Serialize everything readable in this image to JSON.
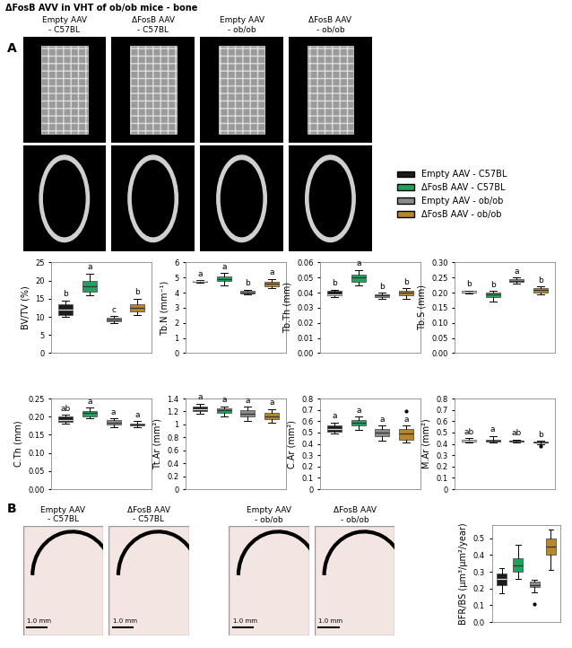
{
  "figure": {
    "title": "ΔFosB AVV in VHT of ob/ob mice - bone",
    "panel_labels": [
      "A",
      "B"
    ],
    "image_titles": [
      "Empty AAV\n- C57BL",
      "ΔFosB AAV\n- C57BL",
      "Empty AAV\n- ob/ob",
      "ΔFosB AAV\n- ob/ob"
    ],
    "scale_bar": "1.0 mm"
  },
  "groups": [
    {
      "name": "Empty AAV - C57BL",
      "color": "#1c1c1c"
    },
    {
      "name": "ΔFosB AAV - C57BL",
      "color": "#1fa35c"
    },
    {
      "name": "Empty AAV - ob/ob",
      "color": "#8a8a8a"
    },
    {
      "name": "ΔFosB AAV - ob/ob",
      "color": "#b8862b"
    }
  ],
  "chart_data": [
    {
      "type": "box",
      "y_label": "BV/TV (%)",
      "ylim": [
        0,
        25
      ],
      "yticks": [
        0,
        5,
        10,
        15,
        20,
        25
      ],
      "tick_labels": "y",
      "series": [
        {
          "name": "Empty AAV - C57BL",
          "color": "#1c1c1c",
          "q1": 10.5,
          "median": 12,
          "q3": 13.5,
          "whisker_low": 10,
          "whisker_high": 14.5,
          "outliers": [],
          "letter": "b"
        },
        {
          "name": "ΔFosB AAV - C57BL",
          "color": "#1fa35c",
          "q1": 17,
          "median": 18.5,
          "q3": 20,
          "whisker_low": 16,
          "whisker_high": 22,
          "outliers": [],
          "letter": "a"
        },
        {
          "name": "Empty AAV - ob/ob",
          "color": "#8a8a8a",
          "q1": 8.8,
          "median": 9.3,
          "q3": 9.8,
          "whisker_low": 8.3,
          "whisker_high": 10.2,
          "outliers": [],
          "letter": "c"
        },
        {
          "name": "ΔFosB AAV - ob/ob",
          "color": "#b8862b",
          "q1": 11.5,
          "median": 12.5,
          "q3": 13.5,
          "whisker_low": 10.5,
          "whisker_high": 15,
          "outliers": [],
          "letter": "b"
        }
      ]
    },
    {
      "type": "box",
      "y_label": "Tb.N (mm⁻¹)",
      "ylim": [
        0,
        6
      ],
      "yticks": [
        0,
        1,
        2,
        3,
        4,
        5,
        6
      ],
      "tick_labels": "y",
      "series": [
        {
          "name": "Empty AAV - C57BL",
          "color": "#1c1c1c",
          "q1": 4.7,
          "median": 4.75,
          "q3": 4.8,
          "whisker_low": 4.68,
          "whisker_high": 4.82,
          "outliers": [],
          "letter": "a"
        },
        {
          "name": "ΔFosB AAV - C57BL",
          "color": "#1fa35c",
          "q1": 4.75,
          "median": 4.9,
          "q3": 5.05,
          "whisker_low": 4.5,
          "whisker_high": 5.3,
          "outliers": [],
          "letter": "a"
        },
        {
          "name": "Empty AAV - ob/ob",
          "color": "#8a8a8a",
          "q1": 3.95,
          "median": 4.0,
          "q3": 4.1,
          "whisker_low": 3.9,
          "whisker_high": 4.2,
          "outliers": [],
          "letter": "b"
        },
        {
          "name": "ΔFosB AAV - ob/ob",
          "color": "#b8862b",
          "q1": 4.4,
          "median": 4.6,
          "q3": 4.7,
          "whisker_low": 4.3,
          "whisker_high": 4.9,
          "outliers": [],
          "letter": "a"
        }
      ]
    },
    {
      "type": "box",
      "y_label": "Tb.Th (mm)",
      "ylim": [
        0,
        0.06
      ],
      "yticks": [
        {
          "value": 0,
          "label": "0.00"
        },
        0.01,
        0.02,
        0.03,
        0.04,
        0.05,
        0.06
      ],
      "tick_labels": "y",
      "series": [
        {
          "name": "Empty AAV - C57BL",
          "color": "#1c1c1c",
          "q1": 0.038,
          "median": 0.039,
          "q3": 0.041,
          "whisker_low": 0.037,
          "whisker_high": 0.042,
          "outliers": [],
          "letter": "b"
        },
        {
          "name": "ΔFosB AAV - C57BL",
          "color": "#1fa35c",
          "q1": 0.047,
          "median": 0.05,
          "q3": 0.052,
          "whisker_low": 0.045,
          "whisker_high": 0.055,
          "outliers": [],
          "letter": "a"
        },
        {
          "name": "Empty AAV - ob/ob",
          "color": "#8a8a8a",
          "q1": 0.037,
          "median": 0.038,
          "q3": 0.039,
          "whisker_low": 0.036,
          "whisker_high": 0.04,
          "outliers": [],
          "letter": "b"
        },
        {
          "name": "ΔFosB AAV - ob/ob",
          "color": "#b8862b",
          "q1": 0.038,
          "median": 0.04,
          "q3": 0.041,
          "whisker_low": 0.036,
          "whisker_high": 0.043,
          "outliers": [],
          "letter": "b"
        }
      ]
    },
    {
      "type": "box",
      "y_label": "Tb.S (mm)",
      "ylim": [
        0,
        0.3
      ],
      "yticks": [
        {
          "value": 0,
          "label": "0.00"
        },
        0.05,
        {
          "value": 0.1,
          "label": "0.10"
        },
        0.15,
        {
          "value": 0.2,
          "label": "0.20"
        },
        0.25,
        {
          "value": 0.3,
          "label": "0.30"
        }
      ],
      "tick_labels": "y",
      "series": [
        {
          "name": "Empty AAV - C57BL",
          "color": "#1c1c1c",
          "q1": 0.2,
          "median": 0.202,
          "q3": 0.205,
          "whisker_low": 0.198,
          "whisker_high": 0.207,
          "outliers": [],
          "letter": "b"
        },
        {
          "name": "ΔFosB AAV - C57BL",
          "color": "#1fa35c",
          "q1": 0.185,
          "median": 0.195,
          "q3": 0.2,
          "whisker_low": 0.17,
          "whisker_high": 0.205,
          "outliers": [],
          "letter": "b"
        },
        {
          "name": "Empty AAV - ob/ob",
          "color": "#8a8a8a",
          "q1": 0.235,
          "median": 0.24,
          "q3": 0.245,
          "whisker_low": 0.23,
          "whisker_high": 0.25,
          "outliers": [],
          "letter": "a"
        },
        {
          "name": "ΔFosB AAV - ob/ob",
          "color": "#b8862b",
          "q1": 0.2,
          "median": 0.208,
          "q3": 0.215,
          "whisker_low": 0.195,
          "whisker_high": 0.22,
          "outliers": [],
          "letter": "b"
        }
      ]
    },
    {
      "type": "box",
      "y_label": "C.Th (mm)",
      "ylim": [
        0,
        0.25
      ],
      "yticks": [
        {
          "value": 0,
          "label": "0.00"
        },
        0.05,
        {
          "value": 0.1,
          "label": "0.10"
        },
        0.15,
        {
          "value": 0.2,
          "label": "0.20"
        },
        0.25
      ],
      "tick_labels": "y",
      "series": [
        {
          "name": "Empty AAV - C57BL",
          "color": "#1c1c1c",
          "q1": 0.185,
          "median": 0.19,
          "q3": 0.2,
          "whisker_low": 0.18,
          "whisker_high": 0.205,
          "outliers": [],
          "letter": "ab"
        },
        {
          "name": "ΔFosB AAV - C57BL",
          "color": "#1fa35c",
          "q1": 0.2,
          "median": 0.21,
          "q3": 0.215,
          "whisker_low": 0.195,
          "whisker_high": 0.225,
          "outliers": [],
          "letter": "a"
        },
        {
          "name": "Empty AAV - ob/ob",
          "color": "#8a8a8a",
          "q1": 0.178,
          "median": 0.183,
          "q3": 0.19,
          "whisker_low": 0.17,
          "whisker_high": 0.195,
          "outliers": [],
          "letter": "a"
        },
        {
          "name": "ΔFosB AAV - ob/ob",
          "color": "#b8862b",
          "q1": 0.175,
          "median": 0.178,
          "q3": 0.182,
          "whisker_low": 0.17,
          "whisker_high": 0.188,
          "outliers": [],
          "letter": "a"
        }
      ]
    },
    {
      "type": "box",
      "y_label": "Tt.Ar (mm²)",
      "ylim": [
        0,
        1.4
      ],
      "yticks": [
        0,
        0.2,
        0.4,
        0.6,
        0.8,
        1,
        1.2,
        1.4
      ],
      "tick_labels": "y",
      "series": [
        {
          "name": "Empty AAV - C57BL",
          "color": "#1c1c1c",
          "q1": 1.2,
          "median": 1.24,
          "q3": 1.28,
          "whisker_low": 1.17,
          "whisker_high": 1.32,
          "outliers": [],
          "letter": "a"
        },
        {
          "name": "ΔFosB AAV - C57BL",
          "color": "#1fa35c",
          "q1": 1.18,
          "median": 1.22,
          "q3": 1.25,
          "whisker_low": 1.12,
          "whisker_high": 1.28,
          "outliers": [],
          "letter": "a"
        },
        {
          "name": "Empty AAV - ob/ob",
          "color": "#8a8a8a",
          "q1": 1.12,
          "median": 1.17,
          "q3": 1.22,
          "whisker_low": 1.05,
          "whisker_high": 1.27,
          "outliers": [],
          "letter": "a"
        },
        {
          "name": "ΔFosB AAV - ob/ob",
          "color": "#b8862b",
          "q1": 1.08,
          "median": 1.12,
          "q3": 1.18,
          "whisker_low": 1.02,
          "whisker_high": 1.24,
          "outliers": [],
          "letter": "a"
        }
      ]
    },
    {
      "type": "box",
      "y_label": "C.Ar (mm²)",
      "ylim": [
        0,
        0.8
      ],
      "yticks": [
        0,
        0.1,
        0.2,
        0.3,
        0.4,
        0.5,
        0.6,
        0.7,
        0.8
      ],
      "tick_labels": "y",
      "series": [
        {
          "name": "Empty AAV - C57BL",
          "color": "#1c1c1c",
          "q1": 0.51,
          "median": 0.53,
          "q3": 0.56,
          "whisker_low": 0.49,
          "whisker_high": 0.59,
          "outliers": [],
          "letter": "a"
        },
        {
          "name": "ΔFosB AAV - C57BL",
          "color": "#1fa35c",
          "q1": 0.56,
          "median": 0.59,
          "q3": 0.61,
          "whisker_low": 0.52,
          "whisker_high": 0.64,
          "outliers": [],
          "letter": "a"
        },
        {
          "name": "Empty AAV - ob/ob",
          "color": "#8a8a8a",
          "q1": 0.47,
          "median": 0.5,
          "q3": 0.53,
          "whisker_low": 0.43,
          "whisker_high": 0.56,
          "outliers": [],
          "letter": "a"
        },
        {
          "name": "ΔFosB AAV - ob/ob",
          "color": "#b8862b",
          "q1": 0.44,
          "median": 0.49,
          "q3": 0.53,
          "whisker_low": 0.41,
          "whisker_high": 0.56,
          "outliers": [
            0.69
          ],
          "letter": "a"
        }
      ]
    },
    {
      "type": "box",
      "y_label": "M.Ar (mm²)",
      "ylim": [
        0,
        0.8
      ],
      "yticks": [
        0,
        0.1,
        0.2,
        0.3,
        0.4,
        0.5,
        0.6,
        0.7,
        0.8
      ],
      "tick_labels": "y",
      "series": [
        {
          "name": "Empty AAV - C57BL",
          "color": "#1c1c1c",
          "q1": 0.42,
          "median": 0.43,
          "q3": 0.44,
          "whisker_low": 0.41,
          "whisker_high": 0.45,
          "outliers": [],
          "letter": "ab"
        },
        {
          "name": "ΔFosB AAV - C57BL",
          "color": "#1fa35c",
          "q1": 0.42,
          "median": 0.43,
          "q3": 0.44,
          "whisker_low": 0.41,
          "whisker_high": 0.47,
          "outliers": [],
          "letter": "a"
        },
        {
          "name": "Empty AAV - ob/ob",
          "color": "#8a8a8a",
          "q1": 0.42,
          "median": 0.425,
          "q3": 0.43,
          "whisker_low": 0.41,
          "whisker_high": 0.44,
          "outliers": [],
          "letter": "ab"
        },
        {
          "name": "ΔFosB AAV - ob/ob",
          "color": "#b8862b",
          "q1": 0.41,
          "median": 0.415,
          "q3": 0.42,
          "whisker_low": 0.4,
          "whisker_high": 0.425,
          "outliers": [
            0.38
          ],
          "letter": "b"
        }
      ]
    },
    {
      "type": "box",
      "y_label": "BFR/BS (µm³/µm²/year)",
      "ylim": [
        0,
        0.58
      ],
      "yticks": [
        {
          "value": 0,
          "label": "0.0"
        },
        0.1,
        0.2,
        0.3,
        0.4,
        0.5
      ],
      "tick_labels": "y",
      "series": [
        {
          "name": "Empty AAV - C57BL",
          "color": "#1c1c1c",
          "q1": 0.22,
          "median": 0.26,
          "q3": 0.29,
          "whisker_low": 0.17,
          "whisker_high": 0.32,
          "outliers": []
        },
        {
          "name": "ΔFosB AAV - C57BL",
          "color": "#1fa35c",
          "q1": 0.3,
          "median": 0.34,
          "q3": 0.38,
          "whisker_low": 0.26,
          "whisker_high": 0.46,
          "outliers": []
        },
        {
          "name": "Empty AAV - ob/ob",
          "color": "#8a8a8a",
          "q1": 0.21,
          "median": 0.22,
          "q3": 0.24,
          "whisker_low": 0.18,
          "whisker_high": 0.25,
          "outliers": [
            0.11
          ]
        },
        {
          "name": "ΔFosB AAV - ob/ob",
          "color": "#b8862b",
          "q1": 0.4,
          "median": 0.45,
          "q3": 0.5,
          "whisker_low": 0.31,
          "whisker_high": 0.55,
          "outliers": []
        }
      ]
    }
  ]
}
